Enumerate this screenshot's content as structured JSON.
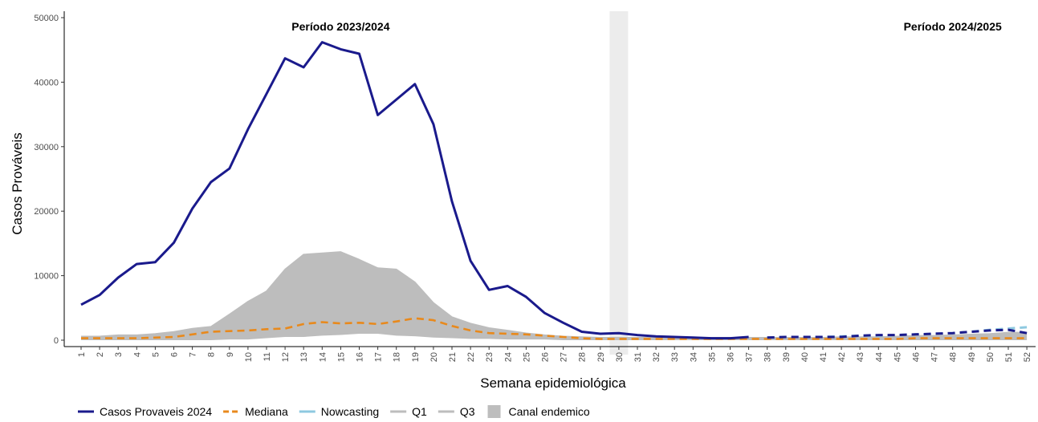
{
  "chart_data": {
    "type": "line",
    "xlabel": "Semana epidemiológica",
    "ylabel": "Casos Prováveis",
    "ylim": [
      0,
      50000
    ],
    "yticks": [
      0,
      10000,
      20000,
      30000,
      40000,
      50000
    ],
    "ytick_labels": [
      "0",
      "10000",
      "20000",
      "30000",
      "40000",
      "50000"
    ],
    "x": [
      1,
      2,
      3,
      4,
      5,
      6,
      7,
      8,
      9,
      10,
      11,
      12,
      13,
      14,
      15,
      16,
      17,
      18,
      19,
      20,
      21,
      22,
      23,
      24,
      25,
      26,
      27,
      28,
      29,
      30,
      31,
      32,
      33,
      34,
      35,
      36,
      37,
      38,
      39,
      40,
      41,
      42,
      43,
      44,
      45,
      46,
      47,
      48,
      49,
      50,
      51,
      52
    ],
    "xtick_labels": [
      "1",
      "2",
      "3",
      "4",
      "5",
      "6",
      "7",
      "8",
      "9",
      "10",
      "11",
      "12",
      "13",
      "14",
      "15",
      "16",
      "17",
      "18",
      "19",
      "20",
      "21",
      "22",
      "23",
      "24",
      "25",
      "26",
      "27",
      "28",
      "29",
      "30",
      "31",
      "32",
      "33",
      "34",
      "35",
      "36",
      "37",
      "38",
      "39",
      "40",
      "41",
      "42",
      "43",
      "44",
      "45",
      "46",
      "47",
      "48",
      "49",
      "50",
      "51",
      "52"
    ],
    "annotations": [
      {
        "text": "Período 2023/2024",
        "x": 15
      },
      {
        "text": "Período 2024/2025",
        "x": 48
      }
    ],
    "highlight_week": 30,
    "grid": false,
    "legend_position": "bottom",
    "series": [
      {
        "name": "Casos Provaveis 2024",
        "color": "#1a1a8c",
        "style": "solid",
        "values": [
          5500,
          7000,
          9700,
          11800,
          12100,
          15100,
          20400,
          24500,
          26600,
          32700,
          38200,
          43700,
          42300,
          46200,
          45100,
          44400,
          34900,
          37300,
          39700,
          33500,
          21500,
          12300,
          7800,
          8400,
          6700,
          4200,
          2700,
          1300,
          1000,
          1100,
          800,
          600,
          500,
          400,
          300,
          300,
          500,
          null,
          null,
          null,
          null,
          null,
          null,
          null,
          null,
          null,
          null,
          null,
          null,
          null,
          null,
          null
        ]
      },
      {
        "name": "Casos Provaveis 2024 (2024/2025)",
        "color": "#1a1a8c",
        "style": "dashed",
        "values": [
          null,
          null,
          null,
          null,
          null,
          null,
          null,
          null,
          null,
          null,
          null,
          null,
          null,
          null,
          null,
          null,
          null,
          null,
          null,
          null,
          null,
          null,
          null,
          null,
          null,
          null,
          null,
          null,
          null,
          null,
          null,
          null,
          null,
          null,
          null,
          null,
          null,
          400,
          500,
          500,
          500,
          500,
          700,
          800,
          800,
          900,
          1000,
          1100,
          1300,
          1500,
          1600,
          1100
        ]
      },
      {
        "name": "Mediana",
        "color": "#e8891c",
        "style": "dashed",
        "values": [
          300,
          300,
          300,
          300,
          400,
          500,
          900,
          1300,
          1400,
          1500,
          1700,
          1800,
          2500,
          2800,
          2600,
          2700,
          2500,
          2900,
          3400,
          3100,
          2200,
          1500,
          1100,
          1000,
          900,
          700,
          500,
          300,
          200,
          200,
          200,
          200,
          200,
          200,
          200,
          200,
          200,
          200,
          200,
          200,
          200,
          200,
          200,
          200,
          200,
          300,
          300,
          300,
          300,
          300,
          300,
          300
        ]
      },
      {
        "name": "Nowcasting",
        "color": "#8ec9e0",
        "style": "dashed",
        "values": [
          null,
          null,
          null,
          null,
          null,
          null,
          null,
          null,
          null,
          null,
          null,
          null,
          null,
          null,
          null,
          null,
          null,
          null,
          null,
          null,
          null,
          null,
          null,
          null,
          null,
          null,
          null,
          null,
          null,
          null,
          null,
          null,
          null,
          null,
          null,
          null,
          null,
          400,
          500,
          500,
          500,
          600,
          700,
          700,
          800,
          900,
          1000,
          1100,
          1300,
          1600,
          1800,
          2000
        ]
      },
      {
        "name": "Q1",
        "color": "#bdbdbd",
        "style": "solid",
        "values": [
          100,
          100,
          100,
          100,
          100,
          100,
          100,
          100,
          200,
          200,
          400,
          600,
          600,
          800,
          900,
          1100,
          1100,
          800,
          700,
          500,
          400,
          300,
          300,
          200,
          200,
          200,
          100,
          100,
          100,
          100,
          100,
          100,
          100,
          100,
          100,
          100,
          100,
          100,
          100,
          100,
          100,
          100,
          100,
          100,
          100,
          100,
          100,
          100,
          100,
          100,
          100,
          100
        ]
      },
      {
        "name": "Q3",
        "color": "#bdbdbd",
        "style": "solid",
        "values": [
          600,
          600,
          800,
          800,
          1000,
          1300,
          1800,
          2100,
          4000,
          6000,
          7600,
          11000,
          13300,
          13500,
          13700,
          12500,
          11200,
          11000,
          9000,
          5800,
          3600,
          2600,
          1900,
          1500,
          1100,
          800,
          600,
          500,
          400,
          400,
          400,
          400,
          400,
          400,
          400,
          400,
          400,
          400,
          400,
          400,
          400,
          500,
          500,
          500,
          600,
          700,
          700,
          800,
          900,
          1000,
          1200,
          1200
        ]
      }
    ],
    "band": {
      "name": "Canal endemico",
      "color": "#bdbdbd",
      "lower": "Q1",
      "upper": "Q3"
    }
  },
  "legend": [
    {
      "label": "Casos Provaveis 2024",
      "type": "line",
      "color": "#1a1a8c",
      "style": "solid"
    },
    {
      "label": "Mediana",
      "type": "line",
      "color": "#e8891c",
      "style": "dashed"
    },
    {
      "label": "Nowcasting",
      "type": "line",
      "color": "#8ec9e0",
      "style": "solid"
    },
    {
      "label": "Q1",
      "type": "line",
      "color": "#bdbdbd",
      "style": "solid"
    },
    {
      "label": "Q3",
      "type": "line",
      "color": "#bdbdbd",
      "style": "solid"
    },
    {
      "label": "Canal endemico",
      "type": "box",
      "color": "#bdbdbd"
    }
  ]
}
